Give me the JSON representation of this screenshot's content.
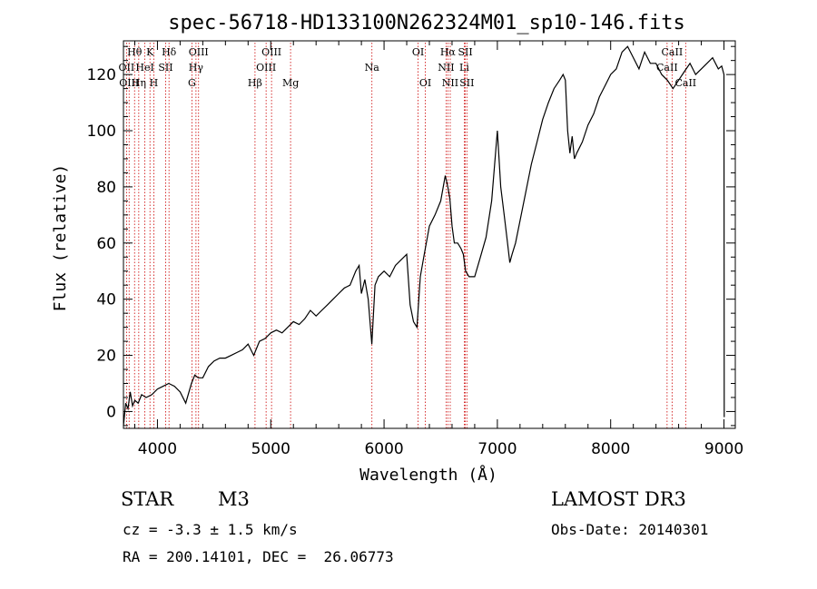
{
  "chart_data": {
    "type": "line",
    "title": "spec-56718-HD133100N262324M01_sp10-146.fits",
    "xlabel": "Wavelength (Å)",
    "ylabel": "Flux (relative)",
    "xlim": [
      3700,
      9100
    ],
    "ylim": [
      -6,
      132
    ],
    "xticks": [
      4000,
      5000,
      6000,
      7000,
      8000,
      9000
    ],
    "yticks": [
      0,
      20,
      40,
      60,
      80,
      100,
      120
    ],
    "series": [
      {
        "name": "flux",
        "x": [
          3700,
          3720,
          3740,
          3760,
          3780,
          3800,
          3830,
          3860,
          3900,
          3950,
          4000,
          4050,
          4100,
          4150,
          4200,
          4250,
          4300,
          4330,
          4360,
          4400,
          4450,
          4500,
          4550,
          4600,
          4650,
          4700,
          4750,
          4800,
          4850,
          4870,
          4900,
          4950,
          5000,
          5050,
          5100,
          5150,
          5200,
          5250,
          5300,
          5350,
          5400,
          5450,
          5500,
          5550,
          5600,
          5650,
          5700,
          5750,
          5780,
          5800,
          5830,
          5860,
          5892,
          5920,
          5950,
          6000,
          6050,
          6100,
          6150,
          6200,
          6230,
          6260,
          6290,
          6320,
          6350,
          6400,
          6450,
          6500,
          6540,
          6563,
          6580,
          6600,
          6620,
          6650,
          6680,
          6700,
          6720,
          6750,
          6800,
          6850,
          6900,
          6950,
          7000,
          7030,
          7060,
          7090,
          7110,
          7130,
          7160,
          7200,
          7250,
          7300,
          7350,
          7400,
          7450,
          7500,
          7550,
          7580,
          7600,
          7620,
          7640,
          7660,
          7680,
          7700,
          7750,
          7800,
          7850,
          7900,
          7950,
          8000,
          8050,
          8100,
          8150,
          8200,
          8250,
          8300,
          8350,
          8400,
          8450,
          8500,
          8550,
          8600,
          8650,
          8700,
          8750,
          8800,
          8850,
          8900,
          8950,
          8980,
          9000,
          9002
        ],
        "y": [
          -5,
          3,
          1,
          7,
          2,
          4,
          3,
          6,
          5,
          6,
          8,
          9,
          10,
          9,
          7,
          3,
          10,
          13,
          12,
          12,
          16,
          18,
          19,
          19,
          20,
          21,
          22,
          24,
          20,
          22,
          25,
          26,
          28,
          29,
          28,
          30,
          32,
          31,
          33,
          36,
          34,
          36,
          38,
          40,
          42,
          44,
          45,
          50,
          52,
          42,
          47,
          40,
          24,
          45,
          48,
          50,
          48,
          52,
          54,
          56,
          38,
          32,
          30,
          48,
          55,
          66,
          70,
          75,
          84,
          80,
          76,
          66,
          60,
          60,
          58,
          56,
          50,
          48,
          48,
          55,
          62,
          75,
          100,
          80,
          70,
          60,
          53,
          56,
          60,
          68,
          78,
          88,
          96,
          104,
          110,
          115,
          118,
          120,
          118,
          100,
          92,
          98,
          90,
          92,
          96,
          102,
          106,
          112,
          116,
          120,
          122,
          128,
          130,
          126,
          122,
          128,
          124,
          124,
          120,
          118,
          115,
          118,
          121,
          124,
          120,
          122,
          124,
          126,
          122,
          123,
          120,
          -2
        ]
      }
    ],
    "spectral_lines": [
      {
        "name": "Hθ",
        "wavelength": 3798,
        "row": 1
      },
      {
        "name": "OII",
        "wavelength": 3727,
        "row": 2
      },
      {
        "name": "OIII",
        "wavelength": 3750,
        "row": 3
      },
      {
        "name": "K",
        "wavelength": 3934,
        "row": 1
      },
      {
        "name": "HeI",
        "wavelength": 3889,
        "row": 2
      },
      {
        "name": "Hη",
        "wavelength": 3835,
        "row": 3
      },
      {
        "name": "Hδ",
        "wavelength": 4102,
        "row": 1
      },
      {
        "name": "SII",
        "wavelength": 4072,
        "row": 2
      },
      {
        "name": "H",
        "wavelength": 3968,
        "row": 3
      },
      {
        "name": "OIII",
        "wavelength": 4363,
        "row": 1
      },
      {
        "name": "Hγ",
        "wavelength": 4340,
        "row": 2
      },
      {
        "name": "G",
        "wavelength": 4304,
        "row": 3
      },
      {
        "name": "OIII",
        "wavelength": 5007,
        "row": 1
      },
      {
        "name": "OIII",
        "wavelength": 4959,
        "row": 2
      },
      {
        "name": "Hβ",
        "wavelength": 4861,
        "row": 3
      },
      {
        "name": "Mg",
        "wavelength": 5175,
        "row": 3
      },
      {
        "name": "Na",
        "wavelength": 5893,
        "row": 2
      },
      {
        "name": "OI",
        "wavelength": 6300,
        "row": 1
      },
      {
        "name": "OI",
        "wavelength": 6364,
        "row": 3
      },
      {
        "name": "Hα",
        "wavelength": 6563,
        "row": 1
      },
      {
        "name": "NII",
        "wavelength": 6548,
        "row": 2
      },
      {
        "name": "NII",
        "wavelength": 6584,
        "row": 3
      },
      {
        "name": "SII",
        "wavelength": 6717,
        "row": 1
      },
      {
        "name": "Li",
        "wavelength": 6708,
        "row": 2
      },
      {
        "name": "SII",
        "wavelength": 6731,
        "row": 3
      },
      {
        "name": "CaII",
        "wavelength": 8542,
        "row": 1
      },
      {
        "name": "CaII",
        "wavelength": 8498,
        "row": 2
      },
      {
        "name": "CaII",
        "wavelength": 8662,
        "row": 3
      }
    ]
  },
  "info": {
    "class_label": "STAR",
    "subclass": "M3",
    "survey": "LAMOST DR3",
    "cz": "cz = -3.3 ± 1.5 km/s",
    "obs_date": "Obs-Date: 20140301",
    "coords": "RA = 200.14101, DEC =  26.06773"
  },
  "colors": {
    "line": "#000000",
    "marker": "#cc0000",
    "axis": "#000000"
  }
}
